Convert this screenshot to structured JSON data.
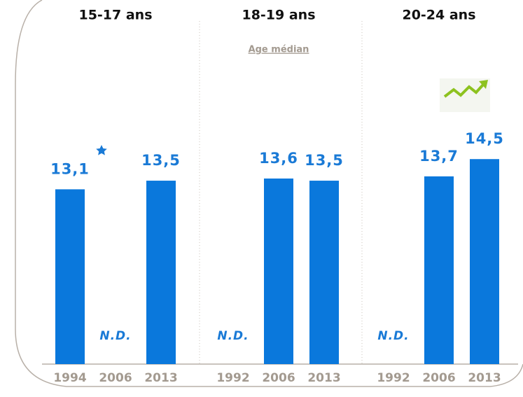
{
  "chart_data": [
    {
      "type": "bar",
      "title": "15-17 ans",
      "categories": [
        "1994",
        "2006",
        "2013"
      ],
      "values": [
        13.1,
        null,
        13.5
      ],
      "value_labels": [
        "13,1",
        "N.D.",
        "13,5"
      ],
      "color": "#0a78dc",
      "ylim": [
        5,
        16
      ]
    },
    {
      "type": "bar",
      "title": "18-19 ans",
      "subtitle": "Age médian",
      "categories": [
        "1992",
        "2006",
        "2013"
      ],
      "values": [
        null,
        13.6,
        13.5
      ],
      "value_labels": [
        "N.D.",
        "13,6",
        "13,5"
      ],
      "color": "#0a78dc",
      "ylim": [
        5,
        16
      ]
    },
    {
      "type": "bar",
      "title": "20-24 ans",
      "categories": [
        "1992",
        "2006",
        "2013"
      ],
      "values": [
        null,
        13.7,
        14.5
      ],
      "value_labels": [
        "N.D.",
        "13,7",
        "14,5"
      ],
      "color": "#0a78dc",
      "ylim": [
        5,
        16
      ]
    }
  ]
}
